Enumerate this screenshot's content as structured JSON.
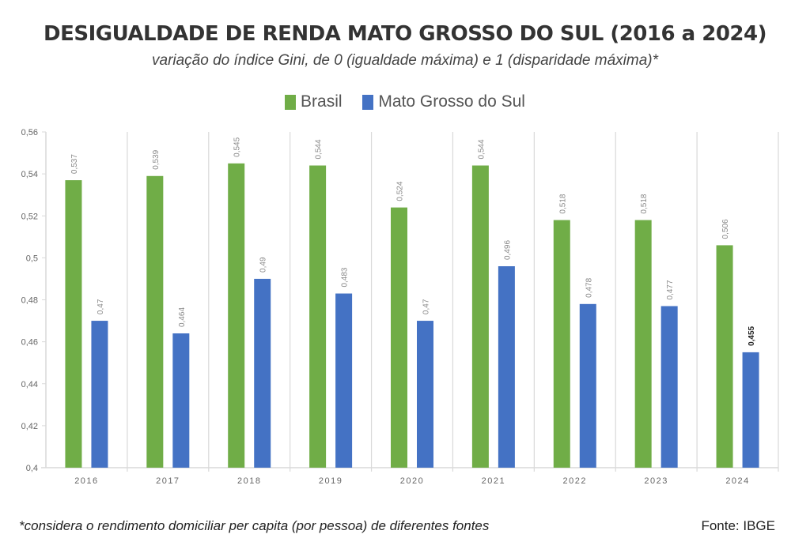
{
  "header": {
    "title": "DESIGUALDADE DE RENDA MATO GROSSO DO SUL (2016 a 2024)",
    "subtitle": "variação do índice Gini, de 0 (igualdade máxima) e 1 (disparidade máxima)*"
  },
  "colors": {
    "brasil": "#70AD47",
    "ms": "#4472C4",
    "axis": "#d9d9d9",
    "label": "#888888",
    "highlight_label": "#222222"
  },
  "chart_data": {
    "type": "bar",
    "title": "DESIGUALDADE DE RENDA MATO GROSSO DO SUL (2016 a 2024)",
    "subtitle": "variação do índice Gini, de 0 (igualdade máxima) e 1 (disparidade máxima)*",
    "xlabel": "",
    "ylabel": "",
    "categories": [
      "2016",
      "2017",
      "2018",
      "2019",
      "2020",
      "2021",
      "2022",
      "2023",
      "2024"
    ],
    "series": [
      {
        "name": "Brasil",
        "values": [
          0.537,
          0.539,
          0.545,
          0.544,
          0.524,
          0.544,
          0.518,
          0.518,
          0.506
        ],
        "labels": [
          "0,537",
          "0,539",
          "0,545",
          "0,544",
          "0,524",
          "0,544",
          "0,518",
          "0,518",
          "0,506"
        ]
      },
      {
        "name": "Mato Grosso do Sul",
        "values": [
          0.47,
          0.464,
          0.49,
          0.483,
          0.47,
          0.496,
          0.478,
          0.477,
          0.455
        ],
        "labels": [
          "0,47",
          "0,464",
          "0,49",
          "0,483",
          "0,47",
          "0,496",
          "0,478",
          "0,477",
          "0,455"
        ]
      }
    ],
    "highlight": {
      "series": 1,
      "index": 8
    },
    "ylim": [
      0.4,
      0.56
    ],
    "yticks": [
      0.4,
      0.42,
      0.44,
      0.46,
      0.48,
      0.5,
      0.52,
      0.54,
      0.56
    ],
    "ytick_labels": [
      "0,4",
      "0,42",
      "0,44",
      "0,46",
      "0,48",
      "0,5",
      "0,52",
      "0,54",
      "0,56"
    ],
    "legend_position": "top-center",
    "grid": "vertical category separators"
  },
  "footer": {
    "footnote": "*considera o rendimento domiciliar per capita (por pessoa) de diferentes fontes",
    "source": "Fonte: IBGE"
  }
}
